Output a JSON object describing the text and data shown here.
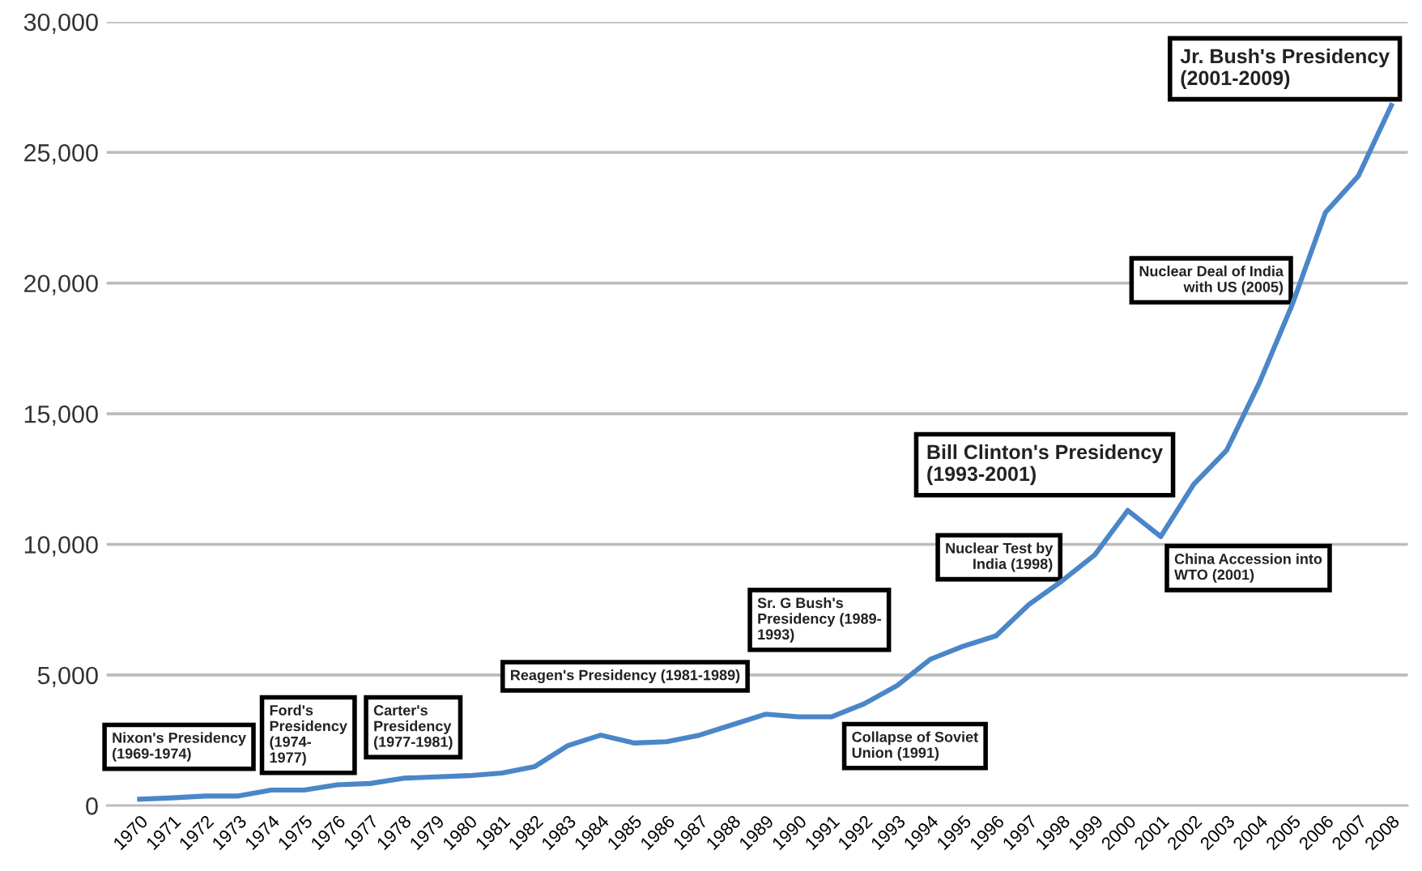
{
  "chart_data": {
    "type": "line",
    "categories": [
      "1970",
      "1971",
      "1972",
      "1973",
      "1974",
      "1975",
      "1976",
      "1977",
      "1978",
      "1979",
      "1980",
      "1981",
      "1982",
      "1983",
      "1984",
      "1985",
      "1986",
      "1987",
      "1988",
      "1989",
      "1990",
      "1991",
      "1992",
      "1993",
      "1994",
      "1995",
      "1996",
      "1997",
      "1998",
      "1999",
      "2000",
      "2001",
      "2002",
      "2003",
      "2004",
      "2005",
      "2006",
      "2007",
      "2008"
    ],
    "series": [
      {
        "color": "#4a86c8",
        "values": [
          250,
          300,
          370,
          370,
          600,
          600,
          800,
          850,
          1050,
          1100,
          1150,
          1250,
          1500,
          2300,
          2700,
          2400,
          2450,
          2700,
          3100,
          3500,
          3400,
          3400,
          3900,
          4600,
          5600,
          6100,
          6500,
          7700,
          8600,
          9600,
          11300,
          10300,
          12300,
          13600,
          16200,
          19200,
          22700,
          24100,
          26800
        ]
      }
    ],
    "ylim": [
      0,
      30000
    ],
    "yticks": [
      {
        "value": 0,
        "label": "0"
      },
      {
        "value": 5000,
        "label": "5,000"
      },
      {
        "value": 10000,
        "label": "10,000"
      },
      {
        "value": 15000,
        "label": "15,000"
      },
      {
        "value": 20000,
        "label": "20,000"
      },
      {
        "value": 25000,
        "label": "25,000"
      },
      {
        "value": 30000,
        "label": "30,000"
      }
    ],
    "grid": "y",
    "legend": false,
    "marker": "none",
    "line_style": "solid",
    "annotations": [
      "Nixon's Presidency\n(1969-1974)",
      "Ford's\nPresidency\n(1974-\n1977)",
      "Carter's\nPresidency\n(1977-1981)",
      "Reagen's Presidency (1981-1989)",
      "Sr. G Bush's\nPresidency (1989-\n1993)",
      "Bill Clinton's Presidency\n(1993-2001)",
      "Jr. Bush's Presidency\n(2001-2009)",
      {
        "text": "Collapse of Soviet\nUnion (1991)",
        "x": "1991",
        "y": 3400
      },
      {
        "text": "Nuclear Test by\nIndia (1998)",
        "x": "1998",
        "y": 8600
      },
      {
        "text": "China Accession into\nWTO (2001)",
        "x": "2001",
        "y": 10300
      },
      {
        "text": "Nuclear Deal of India\nwith US (2005)",
        "x": "2005",
        "y": 19200
      }
    ]
  }
}
